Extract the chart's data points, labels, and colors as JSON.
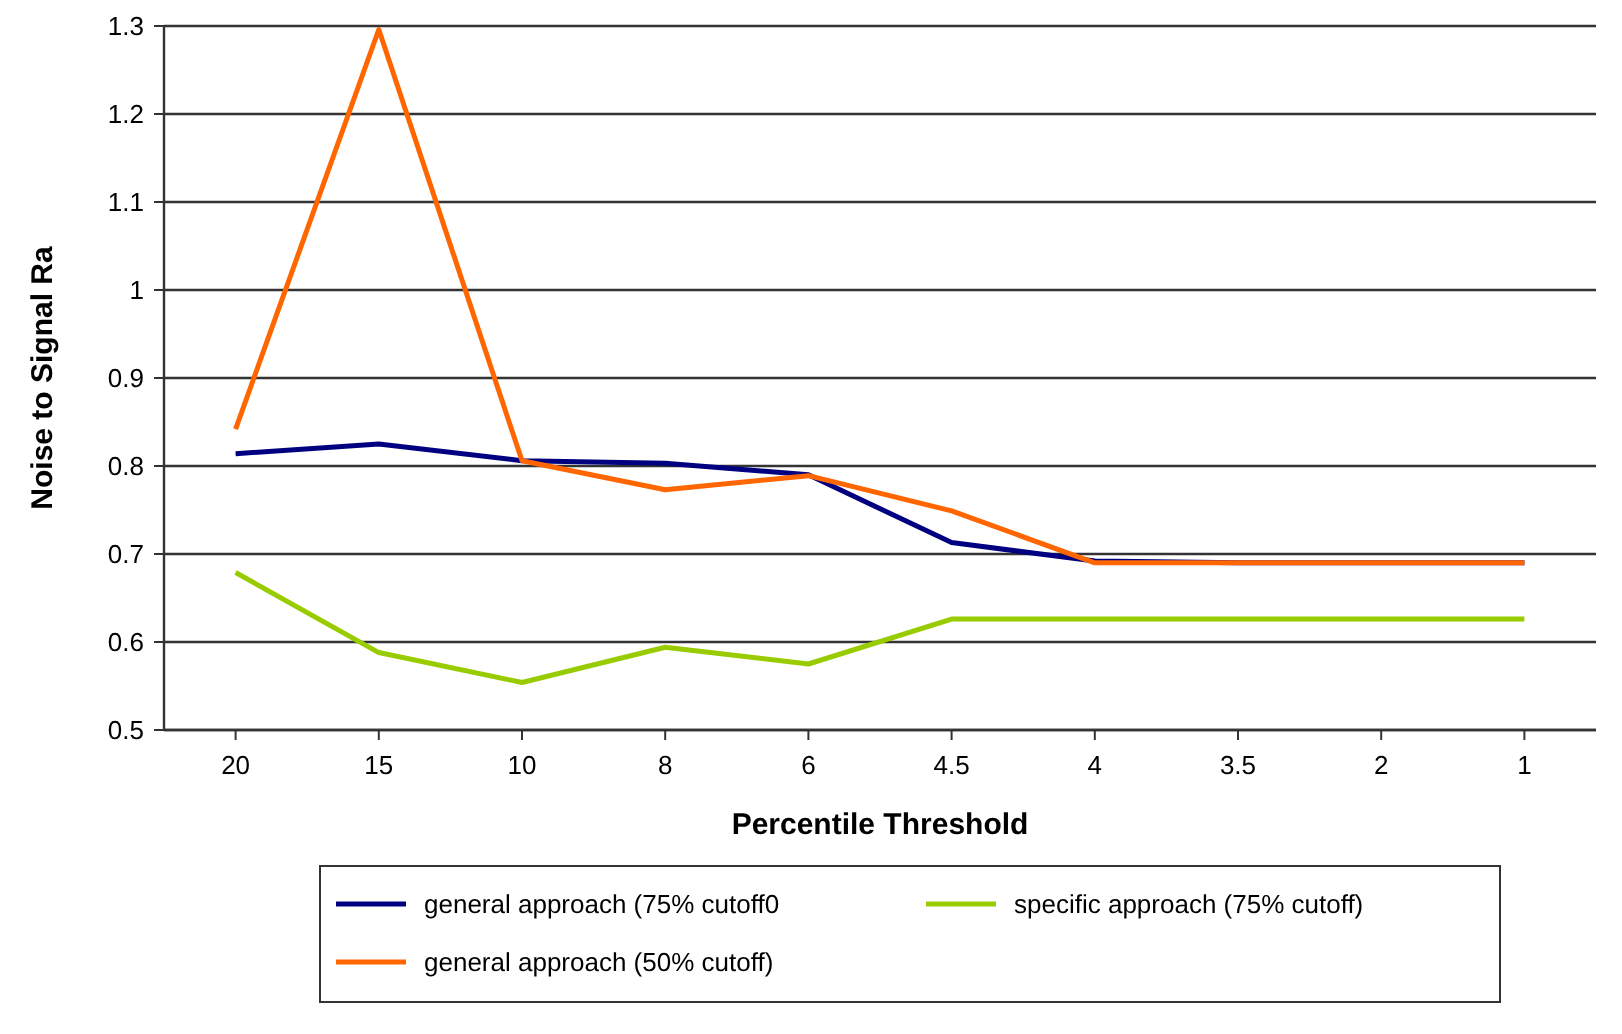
{
  "chart_data": {
    "type": "line",
    "xlabel": "Percentile Threshold",
    "ylabel": "Noise to Signal Ra",
    "categories": [
      "20",
      "15",
      "10",
      "8",
      "6",
      "4.5",
      "4",
      "3.5",
      "2",
      "1"
    ],
    "ylim": [
      0.5,
      1.3
    ],
    "yticks": [
      0.5,
      0.6,
      0.7,
      0.8,
      0.9,
      1,
      1.1,
      1.2,
      1.3
    ],
    "grid": "y",
    "legend": "bottom",
    "series": [
      {
        "name": "general approach (75% cutoff0",
        "color": "#000080",
        "values": [
          0.814,
          0.825,
          0.806,
          0.803,
          0.79,
          0.713,
          0.692,
          0.69,
          0.69,
          0.69
        ]
      },
      {
        "name": "general approach (50% cutoff)",
        "color": "#ff6600",
        "values": [
          0.842,
          1.296,
          0.806,
          0.773,
          0.789,
          0.749,
          0.69,
          0.69,
          0.69,
          0.69
        ]
      },
      {
        "name": "specific approach (75% cutoff)",
        "color": "#99cc00",
        "values": [
          0.679,
          0.588,
          0.554,
          0.594,
          0.575,
          0.626,
          0.626,
          0.626,
          0.626,
          0.626
        ]
      }
    ]
  }
}
